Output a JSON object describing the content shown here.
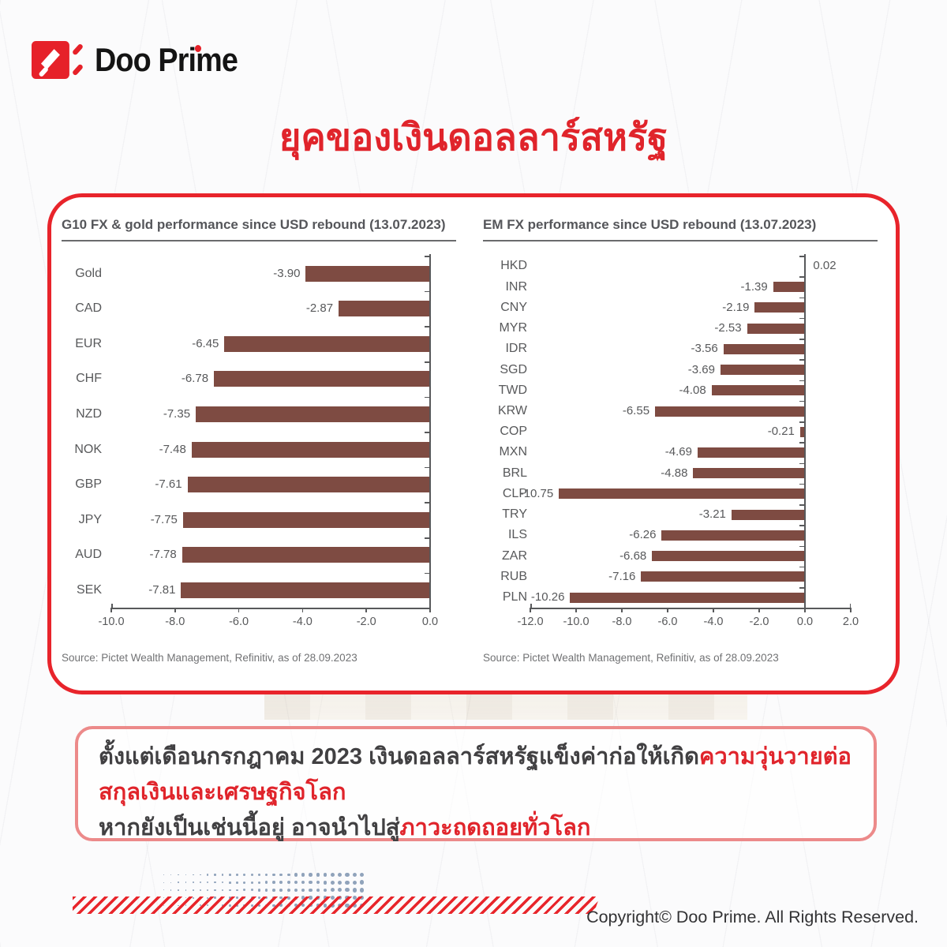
{
  "brand": {
    "name": "Doo Prime"
  },
  "title": "ยุคของเงินดอลลาร์สหรัฐ",
  "chart_data": [
    {
      "type": "bar",
      "orientation": "horizontal",
      "title": "G10 FX & gold performance since USD rebound (13.07.2023)",
      "categories": [
        "Gold",
        "CAD",
        "EUR",
        "CHF",
        "NZD",
        "NOK",
        "GBP",
        "JPY",
        "AUD",
        "SEK"
      ],
      "values": [
        -3.9,
        -2.87,
        -6.45,
        -6.78,
        -7.35,
        -7.48,
        -7.61,
        -7.75,
        -7.78,
        -7.81
      ],
      "xlabel": "",
      "ylabel": "",
      "xlim": [
        -10.0,
        0.0
      ],
      "xticks": [
        -10.0,
        -8.0,
        -6.0,
        -4.0,
        -2.0,
        0.0
      ],
      "grid": false,
      "legend": "none",
      "bar_color": "#7E4B42",
      "source": "Source: Pictet Wealth Management, Refinitiv, as of 28.09.2023"
    },
    {
      "type": "bar",
      "orientation": "horizontal",
      "title": "EM FX performance since USD rebound (13.07.2023)",
      "categories": [
        "HKD",
        "INR",
        "CNY",
        "MYR",
        "IDR",
        "SGD",
        "TWD",
        "KRW",
        "COP",
        "MXN",
        "BRL",
        "CLP",
        "TRY",
        "ILS",
        "ZAR",
        "RUB",
        "PLN"
      ],
      "values": [
        0.02,
        -1.39,
        -2.19,
        -2.53,
        -3.56,
        -3.69,
        -4.08,
        -6.55,
        -0.21,
        -4.69,
        -4.88,
        -10.75,
        -3.21,
        -6.26,
        -6.68,
        -7.16,
        -10.26
      ],
      "xlabel": "",
      "ylabel": "",
      "xlim": [
        -12.0,
        2.0
      ],
      "xticks": [
        -12.0,
        -10.0,
        -8.0,
        -6.0,
        -4.0,
        -2.0,
        0.0,
        2.0
      ],
      "grid": false,
      "legend": "none",
      "bar_color": "#7E4B42",
      "source": "Source: Pictet Wealth Management, Refinitiv, as of 28.09.2023"
    }
  ],
  "note": {
    "lines": [
      [
        {
          "text": "ตั้งแต่เดือนกรกฎาคม 2023 เงินดอลลาร์สหรัฐแข็งค่าก่อให้เกิด",
          "emphasis": false
        },
        {
          "text": "ความวุ่นวายต่อ",
          "emphasis": true
        }
      ],
      [
        {
          "text": "สกุลเงินและเศรษฐกิจโลก",
          "emphasis": true
        }
      ],
      [
        {
          "text": "หากยังเป็นเช่นนี้อยู่ อาจนำไปสู่",
          "emphasis": false
        },
        {
          "text": "ภาวะถดถอยทั่วโลก",
          "emphasis": true
        }
      ]
    ]
  },
  "footer": {
    "copyright": "Copyright© Doo Prime. All Rights Reserved."
  },
  "colors": {
    "brand_red": "#E62129",
    "title_red": "#E0242B",
    "card_border_red": "#E8242B",
    "bar": "#7E4B42",
    "axis_text": "#58595B",
    "note_dark": "#414042",
    "note_red": "#E0242B",
    "note_border": "#EC8A8A",
    "dots_blue_gray": "#90A3BB"
  }
}
